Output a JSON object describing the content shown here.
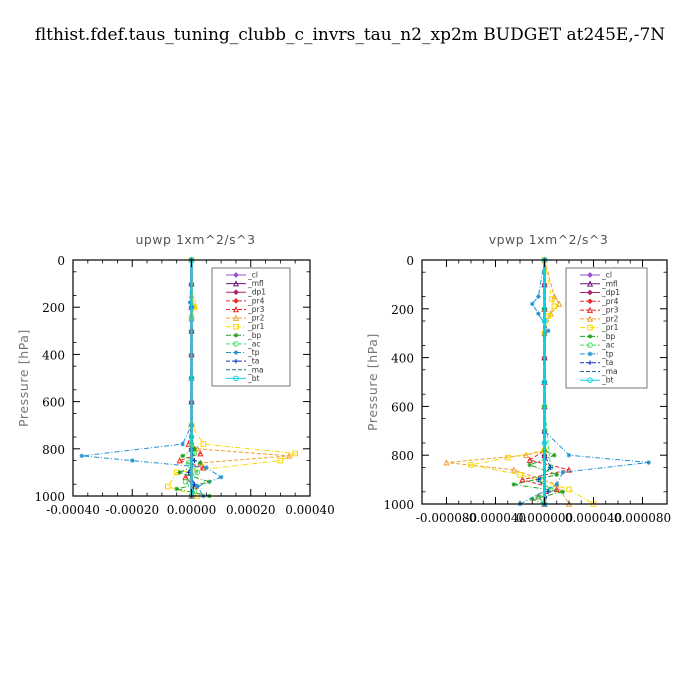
{
  "figure_title": "flthist.fdef.taus_tuning_clubb_c_invrs_tau_n2_xp2m  BUDGET at245E,-7N",
  "chart_data": [
    {
      "type": "line",
      "title": "upwp   1xm^2/s^3",
      "ylabel": "Pressure [hPa]",
      "xlabel": "",
      "xlim": [
        -0.0004,
        0.0004
      ],
      "ylim": [
        1000,
        0
      ],
      "y_inverted": true,
      "xticks": [
        -0.0004,
        -0.0002,
        0.0,
        0.0002,
        0.0004
      ],
      "xtick_labels": [
        "-0.00040",
        "-0.00020",
        "0.00000",
        "0.00020",
        "0.00040"
      ],
      "yticks": [
        0,
        200,
        400,
        600,
        800,
        1000
      ],
      "ytick_labels": [
        "0",
        "200",
        "400",
        "600",
        "800",
        "1000"
      ],
      "legend_position": "top-right",
      "series": [
        {
          "name": "_cl",
          "color": "#9a4fd0",
          "marker": "diamond",
          "dash": "none",
          "x": [
            0,
            0,
            0,
            0,
            0,
            0,
            0,
            0,
            0,
            0
          ],
          "y": [
            0,
            100,
            200,
            300,
            400,
            500,
            600,
            700,
            800,
            1000
          ]
        },
        {
          "name": "_mfl",
          "color": "#6a1a7a",
          "marker": "triangle",
          "dash": "none",
          "x": [
            0,
            0,
            0,
            0,
            0,
            0,
            0,
            0,
            0,
            0
          ],
          "y": [
            0,
            100,
            200,
            300,
            400,
            500,
            600,
            700,
            800,
            1000
          ]
        },
        {
          "name": "_dp1",
          "color": "#b02070",
          "marker": "diamond",
          "dash": "none",
          "x": [
            0,
            0,
            0,
            0,
            0,
            0,
            0,
            0,
            0,
            0
          ],
          "y": [
            0,
            100,
            200,
            300,
            400,
            500,
            600,
            700,
            800,
            1000
          ]
        },
        {
          "name": "_pr4",
          "color": "#e03030",
          "marker": "diamond",
          "dash": "dash",
          "x": [
            0,
            0,
            0,
            0,
            0,
            0,
            0,
            0,
            0,
            0
          ],
          "y": [
            0,
            100,
            200,
            300,
            400,
            500,
            600,
            700,
            800,
            1000
          ]
        },
        {
          "name": "_pr3",
          "color": "#ee2020",
          "marker": "triangle",
          "dash": "dash",
          "x": [
            0,
            0,
            0,
            0,
            -1e-05,
            3e-05,
            -4e-05,
            4e-05,
            -2e-05,
            1e-05,
            0
          ],
          "y": [
            0,
            200,
            400,
            700,
            780,
            820,
            850,
            880,
            920,
            960,
            1000
          ]
        },
        {
          "name": "_pr2",
          "color": "#f0a030",
          "marker": "triangle",
          "dash": "dash",
          "x": [
            0,
            0,
            1e-05,
            0,
            0,
            0,
            2e-05,
            0.00033,
            3e-05,
            0,
            0
          ],
          "y": [
            0,
            150,
            200,
            250,
            500,
            780,
            800,
            830,
            860,
            900,
            1000
          ]
        },
        {
          "name": "_pr1",
          "color": "#f8d800",
          "marker": "square",
          "dash": "dashdot",
          "x": [
            0,
            5e-06,
            1e-05,
            0,
            0,
            4e-05,
            0.00035,
            0.0003,
            -5e-05,
            -8e-05,
            2e-05
          ],
          "y": [
            0,
            180,
            200,
            240,
            700,
            780,
            820,
            850,
            900,
            960,
            1000
          ]
        },
        {
          "name": "_bp",
          "color": "#20a020",
          "marker": "star",
          "dash": "dashdot",
          "x": [
            0,
            0,
            0,
            0,
            1e-05,
            -3e-05,
            3e-05,
            -4e-05,
            6e-05,
            -5e-05,
            6e-05
          ],
          "y": [
            0,
            200,
            500,
            750,
            800,
            830,
            860,
            900,
            940,
            970,
            1000
          ]
        },
        {
          "name": "_ac",
          "color": "#40e060",
          "marker": "circle",
          "dash": "dash",
          "x": [
            0,
            0,
            0,
            0,
            1e-05,
            -1e-05,
            2e-05,
            -2e-05,
            1e-05,
            0
          ],
          "y": [
            0,
            200,
            500,
            780,
            820,
            860,
            900,
            940,
            980,
            1000
          ]
        },
        {
          "name": "_tp",
          "color": "#2090d0",
          "marker": "star",
          "dash": "dashdot",
          "x": [
            0,
            -5e-06,
            0,
            0,
            -3e-05,
            -0.00037,
            -0.0002,
            5e-05,
            0.0001,
            2e-05,
            4e-05
          ],
          "y": [
            0,
            180,
            200,
            700,
            780,
            830,
            850,
            880,
            920,
            960,
            1000
          ]
        },
        {
          "name": "_ta",
          "color": "#1030c0",
          "marker": "plus",
          "dash": "dash",
          "x": [
            0,
            0,
            0,
            0,
            1e-05,
            -1e-05,
            1e-05,
            0
          ],
          "y": [
            0,
            200,
            500,
            800,
            850,
            900,
            950,
            1000
          ]
        },
        {
          "name": "_ma",
          "color": "#2a6a90",
          "marker": "none",
          "dash": "dash",
          "x": [
            0,
            0,
            0,
            0,
            0
          ],
          "y": [
            0,
            250,
            500,
            750,
            1000
          ]
        },
        {
          "name": "_bt",
          "color": "#10d0e0",
          "marker": "circle",
          "dash": "none",
          "x": [
            0,
            0,
            0,
            0,
            0
          ],
          "y": [
            0,
            250,
            500,
            750,
            1000
          ]
        }
      ]
    },
    {
      "type": "line",
      "title": "vpwp   1xm^2/s^3",
      "ylabel": "Pressure [hPa]",
      "xlabel": "",
      "xlim": [
        -0.0001,
        0.0001
      ],
      "ylim": [
        1000,
        0
      ],
      "y_inverted": true,
      "xticks": [
        -8e-05,
        -4e-05,
        0.0,
        4e-05,
        8e-05
      ],
      "xtick_labels": [
        "-0.000080",
        "-0.000040",
        "0.000000",
        "0.000040",
        "0.000080"
      ],
      "yticks": [
        0,
        200,
        400,
        600,
        800,
        1000
      ],
      "ytick_labels": [
        "0",
        "200",
        "400",
        "600",
        "800",
        "1000"
      ],
      "legend_position": "top-right",
      "series": [
        {
          "name": "_cl",
          "color": "#9a4fd0",
          "marker": "diamond",
          "dash": "none",
          "x": [
            0,
            0,
            0,
            0,
            0,
            0,
            0,
            0,
            0,
            0
          ],
          "y": [
            0,
            100,
            200,
            300,
            400,
            500,
            600,
            700,
            800,
            1000
          ]
        },
        {
          "name": "_mfl",
          "color": "#6a1a7a",
          "marker": "triangle",
          "dash": "none",
          "x": [
            0,
            0,
            0,
            0,
            0,
            0,
            0,
            0,
            0,
            0
          ],
          "y": [
            0,
            100,
            200,
            300,
            400,
            500,
            600,
            700,
            800,
            1000
          ]
        },
        {
          "name": "_dp1",
          "color": "#b02070",
          "marker": "diamond",
          "dash": "none",
          "x": [
            0,
            0,
            0,
            0,
            0,
            0,
            0,
            0,
            0,
            0
          ],
          "y": [
            0,
            100,
            200,
            300,
            400,
            500,
            600,
            700,
            800,
            1000
          ]
        },
        {
          "name": "_pr4",
          "color": "#e03030",
          "marker": "diamond",
          "dash": "dash",
          "x": [
            0,
            0,
            0,
            0,
            0,
            0,
            0,
            0,
            0,
            0
          ],
          "y": [
            0,
            100,
            200,
            300,
            400,
            500,
            600,
            700,
            800,
            1000
          ]
        },
        {
          "name": "_pr3",
          "color": "#ee2020",
          "marker": "triangle",
          "dash": "dash",
          "x": [
            0,
            0,
            0,
            0,
            -1.2e-05,
            2e-05,
            -1.8e-05,
            1e-05,
            -5e-06,
            0
          ],
          "y": [
            0,
            200,
            500,
            780,
            820,
            860,
            900,
            940,
            970,
            1000
          ]
        },
        {
          "name": "_pr2",
          "color": "#f0a030",
          "marker": "triangle",
          "dash": "dash",
          "x": [
            0,
            8e-06,
            1.2e-05,
            5e-06,
            0,
            0,
            -1.5e-05,
            -8e-05,
            -2.5e-05,
            1e-05,
            2e-05
          ],
          "y": [
            0,
            150,
            180,
            220,
            300,
            780,
            800,
            830,
            860,
            920,
            1000
          ]
        },
        {
          "name": "_pr1",
          "color": "#f8d800",
          "marker": "square",
          "dash": "dashdot",
          "x": [
            0,
            6e-06,
            8e-06,
            3e-06,
            0,
            0,
            -3e-05,
            -6e-05,
            -2e-05,
            2e-05,
            4e-05
          ],
          "y": [
            0,
            160,
            190,
            230,
            300,
            780,
            810,
            840,
            880,
            940,
            1000
          ]
        },
        {
          "name": "_bp",
          "color": "#20a020",
          "marker": "star",
          "dash": "dashdot",
          "x": [
            0,
            0,
            0,
            0,
            8e-06,
            -1.2e-05,
            1e-05,
            -2.5e-05,
            1.5e-05,
            -1e-05,
            0
          ],
          "y": [
            0,
            200,
            500,
            780,
            800,
            840,
            880,
            920,
            950,
            980,
            1000
          ]
        },
        {
          "name": "_ac",
          "color": "#40e060",
          "marker": "circle",
          "dash": "dash",
          "x": [
            0,
            0,
            0,
            5e-06,
            -5e-06,
            5e-06,
            -5e-06,
            0
          ],
          "y": [
            0,
            200,
            600,
            850,
            900,
            940,
            970,
            1000
          ]
        },
        {
          "name": "_tp",
          "color": "#2090d0",
          "marker": "star",
          "dash": "dashdot",
          "x": [
            0,
            -5e-06,
            -1e-05,
            -5e-06,
            3e-06,
            0,
            0,
            2e-05,
            8.5e-05,
            1.5e-05,
            1e-05,
            -2e-05
          ],
          "y": [
            0,
            150,
            180,
            220,
            290,
            310,
            700,
            800,
            830,
            870,
            920,
            1000
          ]
        },
        {
          "name": "_ta",
          "color": "#1030c0",
          "marker": "plus",
          "dash": "dash",
          "x": [
            0,
            0,
            0,
            0,
            5e-06,
            -5e-06,
            3e-06,
            0
          ],
          "y": [
            0,
            200,
            500,
            800,
            850,
            900,
            950,
            1000
          ]
        },
        {
          "name": "_ma",
          "color": "#2a6a90",
          "marker": "none",
          "dash": "dash",
          "x": [
            0,
            0,
            0,
            0,
            0
          ],
          "y": [
            0,
            250,
            500,
            750,
            1000
          ]
        },
        {
          "name": "_bt",
          "color": "#10d0e0",
          "marker": "circle",
          "dash": "none",
          "x": [
            0,
            0,
            0,
            0,
            0
          ],
          "y": [
            0,
            250,
            500,
            750,
            1000
          ]
        }
      ]
    }
  ]
}
